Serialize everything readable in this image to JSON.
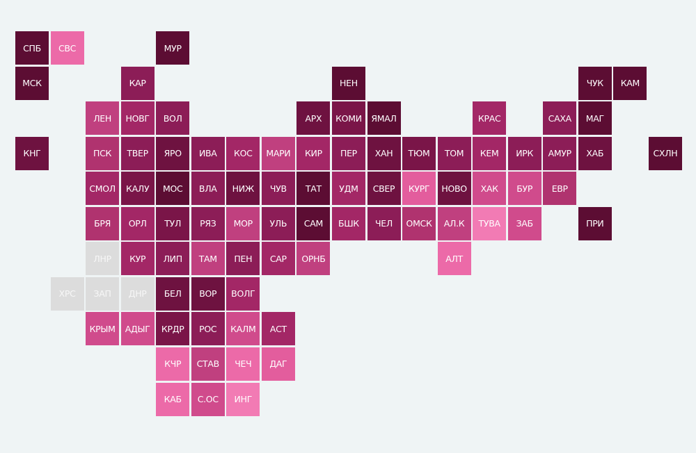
{
  "rows": [
    [
      {
        "label": "СПБ",
        "color": "#5c0d33"
      },
      {
        "label": "СВС",
        "color": "#ec6aa8"
      },
      null,
      null,
      {
        "label": "МУР",
        "color": "#5c0d33"
      },
      null,
      null,
      null,
      null,
      null,
      null,
      null,
      null,
      null,
      null,
      null,
      null,
      null,
      null
    ],
    [
      {
        "label": "МСК",
        "color": "#5c0d33"
      },
      null,
      null,
      {
        "label": "КАР",
        "color": "#8c1d57"
      },
      null,
      null,
      null,
      null,
      null,
      {
        "label": "НЕН",
        "color": "#5c0d33"
      },
      null,
      null,
      null,
      null,
      null,
      null,
      {
        "label": "ЧУК",
        "color": "#5c0d33"
      },
      {
        "label": "КАМ",
        "color": "#5c0d33"
      },
      null
    ],
    [
      null,
      null,
      {
        "label": "ЛЕН",
        "color": "#c0407f"
      },
      {
        "label": "НОВГ",
        "color": "#a32766"
      },
      {
        "label": "ВОЛ",
        "color": "#8c1d57"
      },
      null,
      null,
      null,
      {
        "label": "АРХ",
        "color": "#6e1240"
      },
      {
        "label": "КОМИ",
        "color": "#7a1548"
      },
      {
        "label": "ЯМАЛ",
        "color": "#5c0d33"
      },
      null,
      null,
      {
        "label": "КРАС",
        "color": "#a32766"
      },
      null,
      {
        "label": "САХА",
        "color": "#8c1d57"
      },
      {
        "label": "МАГ",
        "color": "#5c0d33"
      },
      null,
      null
    ],
    [
      {
        "label": "КНГ",
        "color": "#6e1240"
      },
      null,
      {
        "label": "ПСК",
        "color": "#b0336f"
      },
      {
        "label": "ТВЕР",
        "color": "#8c1d57"
      },
      {
        "label": "ЯРО",
        "color": "#6e1240"
      },
      {
        "label": "ИВА",
        "color": "#8c1d57"
      },
      {
        "label": "КОС",
        "color": "#a32766"
      },
      {
        "label": "МАРИ",
        "color": "#c0407f"
      },
      {
        "label": "КИР",
        "color": "#a32766"
      },
      {
        "label": "ПЕР",
        "color": "#8c1d57"
      },
      {
        "label": "ХАН",
        "color": "#6e1240"
      },
      {
        "label": "ТЮМ",
        "color": "#7a1548"
      },
      {
        "label": "ТОМ",
        "color": "#8c1d57"
      },
      {
        "label": "КЕМ",
        "color": "#a32766"
      },
      {
        "label": "ИРК",
        "color": "#8c1d57"
      },
      {
        "label": "АМУР",
        "color": "#8c1d57"
      },
      {
        "label": "ХАБ",
        "color": "#6e1240"
      },
      null,
      {
        "label": "СХЛН",
        "color": "#5c0d33"
      }
    ],
    [
      null,
      null,
      {
        "label": "СМОЛ",
        "color": "#a32766"
      },
      {
        "label": "КАЛУ",
        "color": "#7a1548"
      },
      {
        "label": "МОС",
        "color": "#5c0d33"
      },
      {
        "label": "ВЛА",
        "color": "#8c1d57"
      },
      {
        "label": "НИЖ",
        "color": "#6e1240"
      },
      {
        "label": "ЧУВ",
        "color": "#8c1d57"
      },
      {
        "label": "ТАТ",
        "color": "#5c0d33"
      },
      {
        "label": "УДМ",
        "color": "#a32766"
      },
      {
        "label": "СВЕР",
        "color": "#6e1240"
      },
      {
        "label": "КУРГ",
        "color": "#e35d9d"
      },
      {
        "label": "НОВО",
        "color": "#6e1240"
      },
      {
        "label": "ХАК",
        "color": "#d04b8c"
      },
      {
        "label": "БУР",
        "color": "#d04b8c"
      },
      {
        "label": "ЕВР",
        "color": "#b0336f"
      },
      null,
      null,
      null
    ],
    [
      null,
      null,
      {
        "label": "БРЯ",
        "color": "#b0336f"
      },
      {
        "label": "ОРЛ",
        "color": "#a32766"
      },
      {
        "label": "ТУЛ",
        "color": "#7a1548"
      },
      {
        "label": "РЯЗ",
        "color": "#8c1d57"
      },
      {
        "label": "МОР",
        "color": "#c0407f"
      },
      {
        "label": "УЛЬ",
        "color": "#8c1d57"
      },
      {
        "label": "САМ",
        "color": "#5c0d33"
      },
      {
        "label": "БШК",
        "color": "#a32766"
      },
      {
        "label": "ЧЕЛ",
        "color": "#8c1d57"
      },
      {
        "label": "ОМСК",
        "color": "#b0336f"
      },
      {
        "label": "АЛ.К",
        "color": "#c0407f"
      },
      {
        "label": "ТУВА",
        "color": "#f27bb4"
      },
      {
        "label": "ЗАБ",
        "color": "#d04b8c"
      },
      null,
      {
        "label": "ПРИ",
        "color": "#5c0d33"
      },
      null,
      null
    ],
    [
      null,
      null,
      {
        "label": "ЛНР",
        "color": "#dcdcdc"
      },
      {
        "label": "КУР",
        "color": "#a32766"
      },
      {
        "label": "ЛИП",
        "color": "#8c1d57"
      },
      {
        "label": "ТАМ",
        "color": "#c0407f"
      },
      {
        "label": "ПЕН",
        "color": "#8c1d57"
      },
      {
        "label": "САР",
        "color": "#a32766"
      },
      {
        "label": "ОРНБ",
        "color": "#c0407f"
      },
      null,
      null,
      null,
      {
        "label": "АЛТ",
        "color": "#ec6aa8"
      },
      null,
      null,
      null,
      null,
      null,
      null
    ],
    [
      null,
      {
        "label": "ХРС",
        "color": "#dcdcdc"
      },
      {
        "label": "ЗАП",
        "color": "#dcdcdc"
      },
      {
        "label": "ДНР",
        "color": "#dcdcdc"
      },
      {
        "label": "БЕЛ",
        "color": "#6e1240"
      },
      {
        "label": "ВОР",
        "color": "#6e1240"
      },
      {
        "label": "ВОЛГ",
        "color": "#a32766"
      },
      null,
      null,
      null,
      null,
      null,
      null,
      null,
      null,
      null,
      null,
      null,
      null
    ],
    [
      null,
      null,
      {
        "label": "КРЫМ",
        "color": "#d04b8c"
      },
      {
        "label": "АДЫГ",
        "color": "#d04b8c"
      },
      {
        "label": "КРДР",
        "color": "#7a1548"
      },
      {
        "label": "РОС",
        "color": "#8c1d57"
      },
      {
        "label": "КАЛМ",
        "color": "#d04b8c"
      },
      {
        "label": "АСТ",
        "color": "#a32766"
      },
      null,
      null,
      null,
      null,
      null,
      null,
      null,
      null,
      null,
      null,
      null
    ],
    [
      null,
      null,
      null,
      null,
      {
        "label": "КЧР",
        "color": "#ec6aa8"
      },
      {
        "label": "СТАВ",
        "color": "#c0407f"
      },
      {
        "label": "ЧЕЧ",
        "color": "#ec6aa8"
      },
      {
        "label": "ДАГ",
        "color": "#e35d9d"
      },
      null,
      null,
      null,
      null,
      null,
      null,
      null,
      null,
      null,
      null,
      null
    ],
    [
      null,
      null,
      null,
      null,
      {
        "label": "КАБ",
        "color": "#ec6aa8"
      },
      {
        "label": "С.ОС",
        "color": "#d04b8c"
      },
      {
        "label": "ИНГ",
        "color": "#f27bb4"
      },
      null,
      null,
      null,
      null,
      null,
      null,
      null,
      null,
      null,
      null,
      null,
      null
    ]
  ]
}
